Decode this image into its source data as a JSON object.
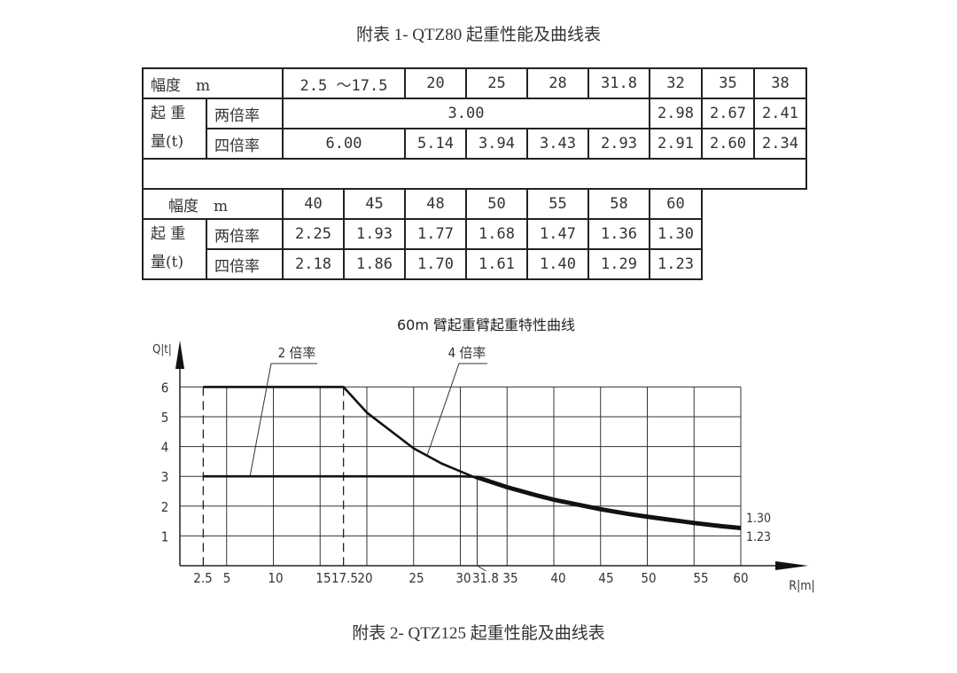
{
  "titles": {
    "table1": "附表 1- QTZ80 起重性能及曲线表",
    "table2": "附表 2- QTZ125 起重性能及曲线表"
  },
  "table": {
    "amplitude_label": "幅度　m",
    "load_label_line1": "起 重",
    "load_label_line2": "量(t)",
    "row_two_fall": "两倍率",
    "row_four_fall": "四倍率",
    "part1": {
      "radius": [
        "2.5 ～17.5",
        "20",
        "25",
        "28",
        "31.8",
        "32",
        "35",
        "38"
      ],
      "two_fall_merged": "3.00",
      "two_fall": [
        "2.98",
        "2.67",
        "2.41"
      ],
      "four_fall_first": "6.00",
      "four_fall": [
        "5.14",
        "3.94",
        "3.43",
        "2.93",
        "2.91",
        "2.60",
        "2.34"
      ]
    },
    "part2": {
      "radius": [
        "40",
        "45",
        "48",
        "50",
        "55",
        "58",
        "60"
      ],
      "two_fall": [
        "2.25",
        "1.93",
        "1.77",
        "1.68",
        "1.47",
        "1.36",
        "1.30"
      ],
      "four_fall": [
        "2.18",
        "1.86",
        "1.70",
        "1.61",
        "1.40",
        "1.29",
        "1.23"
      ]
    }
  },
  "chart_data": {
    "type": "line",
    "title": "60m 臂起重臂起重特性曲线",
    "xlabel": "R|m|",
    "ylabel": "Q|t|",
    "xlim": [
      0,
      62
    ],
    "ylim": [
      0,
      6.5
    ],
    "x_ticks": [
      "2.5",
      "5",
      "10",
      "15",
      "17.5",
      "20",
      "25",
      "30",
      "31.8",
      "35",
      "40",
      "45",
      "50",
      "55",
      "60"
    ],
    "y_ticks": [
      "1",
      "2",
      "3",
      "4",
      "5",
      "6"
    ],
    "grid": true,
    "series": [
      {
        "name": "2 倍率",
        "x": [
          2.5,
          30,
          32,
          35,
          38,
          40,
          45,
          48,
          50,
          55,
          58,
          60
        ],
        "y": [
          3.0,
          3.0,
          2.98,
          2.67,
          2.41,
          2.25,
          1.93,
          1.77,
          1.68,
          1.47,
          1.36,
          1.3
        ]
      },
      {
        "name": "4 倍率",
        "x": [
          2.5,
          17.5,
          20,
          25,
          28,
          31.8,
          32,
          35,
          38,
          40,
          45,
          48,
          50,
          55,
          58,
          60
        ],
        "y": [
          6.0,
          6.0,
          5.14,
          3.94,
          3.43,
          2.93,
          2.91,
          2.6,
          2.34,
          2.18,
          1.86,
          1.7,
          1.61,
          1.4,
          1.29,
          1.23
        ]
      }
    ],
    "annotations": [
      "2 倍率",
      "4 倍率",
      "1.30",
      "1.23"
    ],
    "dashed_verticals": [
      2.5,
      17.5
    ]
  }
}
